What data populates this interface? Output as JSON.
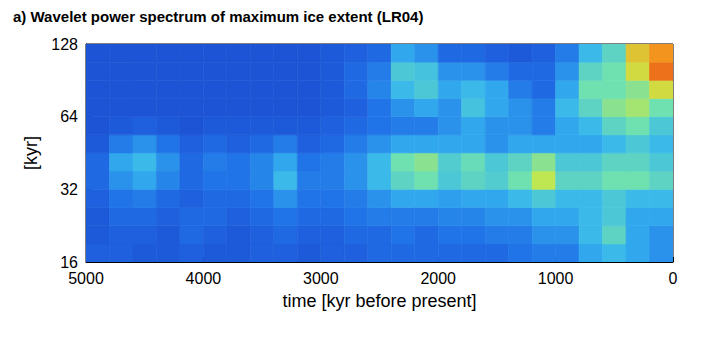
{
  "chart_data": {
    "type": "heatmap",
    "title": "a) Wavelet power spectrum of maximum ice extent (LR04)",
    "x_label": "time [kyr before present]",
    "y_label": "[kyr]",
    "xlim": [
      5000,
      0
    ],
    "xticks": [
      5000,
      4000,
      3000,
      2000,
      1000,
      0
    ],
    "ylim": [
      16,
      128
    ],
    "yticks": [
      16,
      32,
      64,
      128
    ],
    "log": "y",
    "grid": false,
    "color_range": [
      0,
      1
    ],
    "cells": {
      "x_bins": [
        5000,
        4800,
        4600,
        4400,
        4200,
        4000,
        3800,
        3600,
        3400,
        3200,
        3000,
        2800,
        2600,
        2400,
        2200,
        2000,
        1800,
        1600,
        1400,
        1200,
        1000,
        800,
        600,
        400,
        200,
        0
      ],
      "y_bins": [
        16,
        19,
        22.6,
        26.9,
        32,
        38.1,
        45.3,
        53.8,
        64,
        76.1,
        90.5,
        107.6,
        128
      ],
      "values": [
        [
          0.12,
          0.1,
          0.1,
          0.12,
          0.15,
          0.15,
          0.1,
          0.08,
          0.08,
          0.08,
          0.08,
          0.08
        ],
        [
          0.12,
          0.12,
          0.15,
          0.18,
          0.25,
          0.3,
          0.2,
          0.1,
          0.08,
          0.08,
          0.08,
          0.08
        ],
        [
          0.1,
          0.12,
          0.15,
          0.2,
          0.3,
          0.35,
          0.25,
          0.12,
          0.08,
          0.08,
          0.08,
          0.08
        ],
        [
          0.1,
          0.1,
          0.12,
          0.15,
          0.22,
          0.25,
          0.18,
          0.1,
          0.08,
          0.08,
          0.08,
          0.08
        ],
        [
          0.12,
          0.15,
          0.15,
          0.12,
          0.15,
          0.15,
          0.12,
          0.08,
          0.08,
          0.08,
          0.08,
          0.08
        ],
        [
          0.1,
          0.12,
          0.15,
          0.15,
          0.18,
          0.2,
          0.15,
          0.1,
          0.08,
          0.08,
          0.08,
          0.08
        ],
        [
          0.1,
          0.1,
          0.12,
          0.15,
          0.18,
          0.18,
          0.12,
          0.1,
          0.08,
          0.08,
          0.08,
          0.08
        ],
        [
          0.12,
          0.12,
          0.15,
          0.18,
          0.22,
          0.22,
          0.15,
          0.1,
          0.08,
          0.08,
          0.08,
          0.08
        ],
        [
          0.12,
          0.15,
          0.18,
          0.25,
          0.35,
          0.3,
          0.2,
          0.1,
          0.08,
          0.08,
          0.08,
          0.08
        ],
        [
          0.1,
          0.12,
          0.15,
          0.18,
          0.2,
          0.18,
          0.12,
          0.1,
          0.08,
          0.08,
          0.08,
          0.08
        ],
        [
          0.12,
          0.12,
          0.15,
          0.18,
          0.2,
          0.2,
          0.15,
          0.12,
          0.1,
          0.1,
          0.1,
          0.1
        ],
        [
          0.12,
          0.15,
          0.18,
          0.2,
          0.25,
          0.25,
          0.2,
          0.15,
          0.12,
          0.15,
          0.15,
          0.12
        ],
        [
          0.15,
          0.15,
          0.2,
          0.25,
          0.35,
          0.35,
          0.25,
          0.18,
          0.18,
          0.22,
          0.2,
          0.15
        ],
        [
          0.15,
          0.18,
          0.2,
          0.3,
          0.45,
          0.5,
          0.3,
          0.2,
          0.25,
          0.35,
          0.4,
          0.3
        ],
        [
          0.15,
          0.15,
          0.2,
          0.3,
          0.5,
          0.55,
          0.3,
          0.2,
          0.3,
          0.4,
          0.38,
          0.25
        ],
        [
          0.15,
          0.18,
          0.22,
          0.28,
          0.4,
          0.42,
          0.3,
          0.25,
          0.25,
          0.3,
          0.25,
          0.15
        ],
        [
          0.15,
          0.18,
          0.22,
          0.3,
          0.45,
          0.48,
          0.3,
          0.3,
          0.38,
          0.35,
          0.25,
          0.15
        ],
        [
          0.15,
          0.2,
          0.25,
          0.3,
          0.42,
          0.4,
          0.25,
          0.25,
          0.3,
          0.3,
          0.2,
          0.12
        ],
        [
          0.18,
          0.2,
          0.25,
          0.35,
          0.5,
          0.45,
          0.3,
          0.25,
          0.25,
          0.2,
          0.15,
          0.1
        ],
        [
          0.2,
          0.25,
          0.3,
          0.4,
          0.65,
          0.55,
          0.3,
          0.2,
          0.2,
          0.15,
          0.15,
          0.12
        ],
        [
          0.2,
          0.25,
          0.3,
          0.35,
          0.45,
          0.4,
          0.3,
          0.3,
          0.35,
          0.3,
          0.25,
          0.2
        ],
        [
          0.3,
          0.35,
          0.35,
          0.35,
          0.45,
          0.4,
          0.3,
          0.35,
          0.45,
          0.5,
          0.45,
          0.35
        ],
        [
          0.35,
          0.45,
          0.4,
          0.4,
          0.5,
          0.45,
          0.35,
          0.45,
          0.55,
          0.5,
          0.5,
          0.45
        ],
        [
          0.3,
          0.3,
          0.3,
          0.35,
          0.5,
          0.45,
          0.4,
          0.5,
          0.6,
          0.55,
          0.7,
          0.75
        ],
        [
          0.25,
          0.25,
          0.3,
          0.35,
          0.45,
          0.4,
          0.35,
          0.4,
          0.5,
          0.7,
          0.9,
          0.85
        ]
      ]
    }
  }
}
